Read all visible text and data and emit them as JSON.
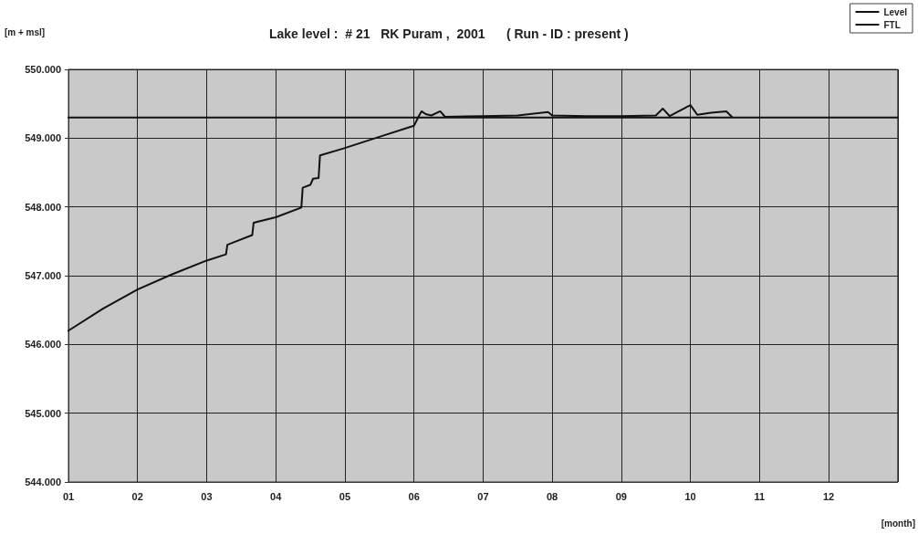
{
  "chart_data": {
    "type": "line",
    "title": "Lake level :  # 21   RK Puram ,  2001      ( Run - ID : present )",
    "xlabel": "[month]",
    "ylabel": "[m + msl]",
    "xlim": [
      1,
      13
    ],
    "xticks": [
      {
        "value": 1,
        "label": "01"
      },
      {
        "value": 2,
        "label": "02"
      },
      {
        "value": 3,
        "label": "03"
      },
      {
        "value": 4,
        "label": "04"
      },
      {
        "value": 5,
        "label": "05"
      },
      {
        "value": 6,
        "label": "06"
      },
      {
        "value": 7,
        "label": "07"
      },
      {
        "value": 8,
        "label": "08"
      },
      {
        "value": 9,
        "label": "09"
      },
      {
        "value": 10,
        "label": "10"
      },
      {
        "value": 11,
        "label": "11"
      },
      {
        "value": 12,
        "label": "12"
      },
      {
        "value": 13,
        "label": null
      }
    ],
    "ylim": [
      544,
      550
    ],
    "yticks": [
      {
        "value": 544,
        "label": "544.000"
      },
      {
        "value": 545,
        "label": "545.000"
      },
      {
        "value": 546,
        "label": "546.000"
      },
      {
        "value": 547,
        "label": "547.000"
      },
      {
        "value": 548,
        "label": "548.000"
      },
      {
        "value": 549,
        "label": "549.000"
      },
      {
        "value": 550,
        "label": "550.000"
      }
    ],
    "grid": true,
    "legend": "top right",
    "marker": "none",
    "line_style": "solid",
    "series": [
      {
        "name": "Level",
        "color": "#111111",
        "x": [
          1,
          1.5,
          2,
          2.5,
          3,
          3.28,
          3.3,
          3.66,
          3.68,
          4,
          4.37,
          4.39,
          4.5,
          4.54,
          4.62,
          4.64,
          4.98,
          5.5,
          6,
          6.08,
          6.11,
          6.17,
          6.25,
          6.38,
          6.45,
          7,
          7.5,
          7.94,
          8,
          8.5,
          9,
          9.5,
          9.6,
          9.7,
          10,
          10.1,
          10.3,
          10.52,
          10.6
        ],
        "values": [
          546.2,
          546.52,
          546.8,
          547.02,
          547.22,
          547.31,
          547.45,
          547.59,
          547.77,
          547.85,
          547.99,
          548.28,
          548.32,
          548.41,
          548.42,
          548.75,
          548.85,
          549.02,
          549.18,
          549.34,
          549.39,
          549.35,
          549.33,
          549.39,
          549.31,
          549.32,
          549.33,
          549.38,
          549.33,
          549.32,
          549.32,
          549.33,
          549.43,
          549.32,
          549.48,
          549.34,
          549.37,
          549.39,
          549.31
        ]
      },
      {
        "name": "FTL",
        "color": "#111111",
        "x": [
          1,
          13
        ],
        "values": [
          549.3,
          549.3
        ]
      }
    ]
  }
}
